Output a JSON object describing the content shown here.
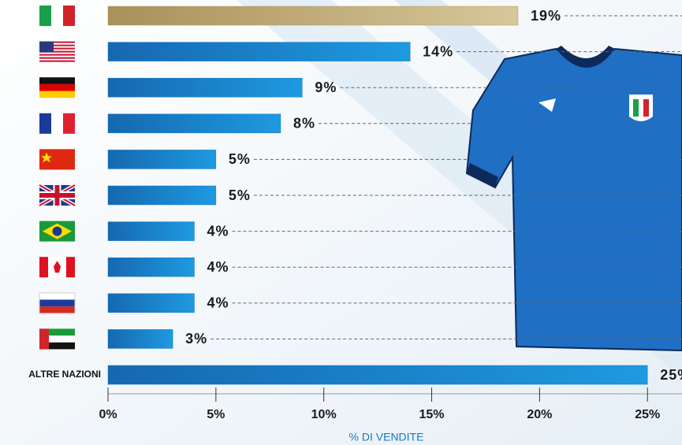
{
  "chart_data": {
    "type": "bar",
    "orientation": "horizontal",
    "categories": [
      null,
      null,
      null,
      null,
      null,
      null,
      null,
      null,
      null,
      null,
      "ALTRE NAZIONI"
    ],
    "values": [
      19,
      14,
      9,
      8,
      5,
      5,
      4,
      4,
      4,
      3,
      25
    ],
    "value_labels": [
      "19%",
      "14%",
      "9%",
      "8%",
      "5%",
      "5%",
      "4%",
      "4%",
      "4%",
      "3%",
      "25%"
    ],
    "colors": [
      "#b39d67",
      "#1a78c2",
      "#1a78c2",
      "#1a78c2",
      "#1a78c2",
      "#1a78c2",
      "#1a78c2",
      "#1a78c2",
      "#1a78c2",
      "#1a78c2",
      "#1a78c2"
    ],
    "xlim": [
      0,
      26.6
    ],
    "xticks": [
      {
        "value": 0,
        "label": "0%"
      },
      {
        "value": 5,
        "label": "5%"
      },
      {
        "value": 10,
        "label": "10%"
      },
      {
        "value": 15,
        "label": "15%"
      },
      {
        "value": 20,
        "label": "20%"
      },
      {
        "value": 25,
        "label": "25%"
      }
    ],
    "x_label": "% DI VENDITE"
  }
}
